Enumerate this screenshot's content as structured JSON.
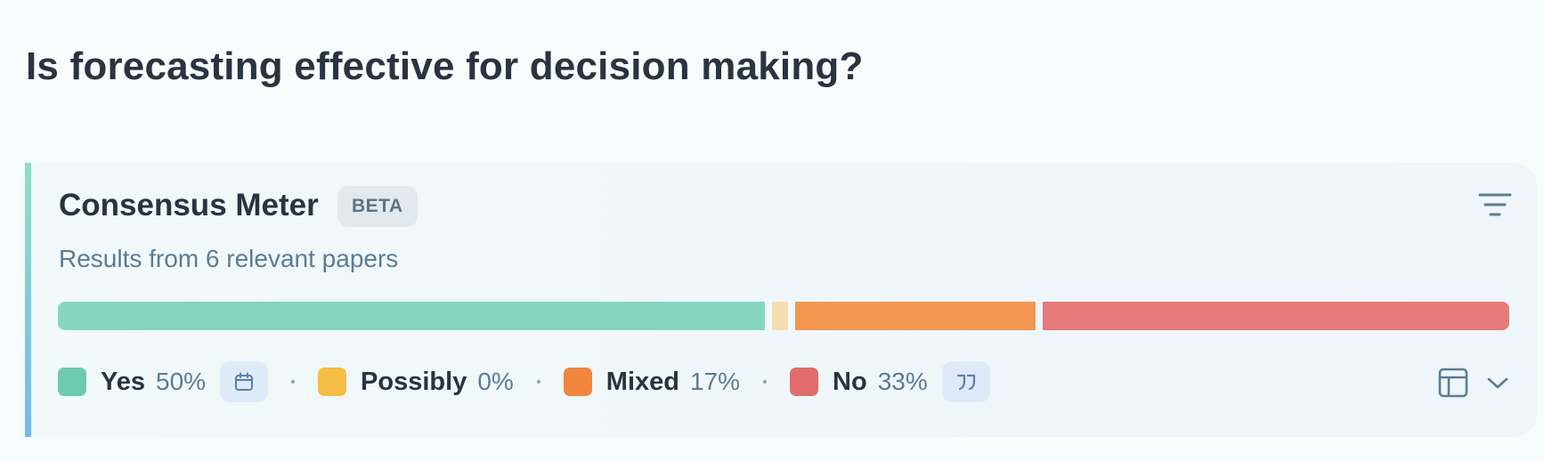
{
  "question": "Is forecasting effective for decision making?",
  "card": {
    "title": "Consensus Meter",
    "badge": "BETA",
    "subtitle": "Results from 6 relevant papers",
    "icons": {
      "filter": "filter-icon",
      "calendar": "calendar-icon",
      "quote": "quote-icon",
      "table": "table-icon",
      "chevron": "chevron-down-icon"
    }
  },
  "consensus": {
    "categories": [
      {
        "key": "yes",
        "label": "Yes",
        "percent_label": "50%",
        "value": 50,
        "color": "#6ccbad",
        "bar_color": "#86d6bd"
      },
      {
        "key": "possibly",
        "label": "Possibly",
        "percent_label": "0%",
        "value": 0,
        "color": "#f5bd45",
        "bar_color": "#f6ddb0"
      },
      {
        "key": "mixed",
        "label": "Mixed",
        "percent_label": "17%",
        "value": 17,
        "color": "#f0873c",
        "bar_color": "#f29650"
      },
      {
        "key": "no",
        "label": "No",
        "percent_label": "33%",
        "value": 33,
        "color": "#e06c6c",
        "bar_color": "#e67b7b"
      }
    ]
  }
}
